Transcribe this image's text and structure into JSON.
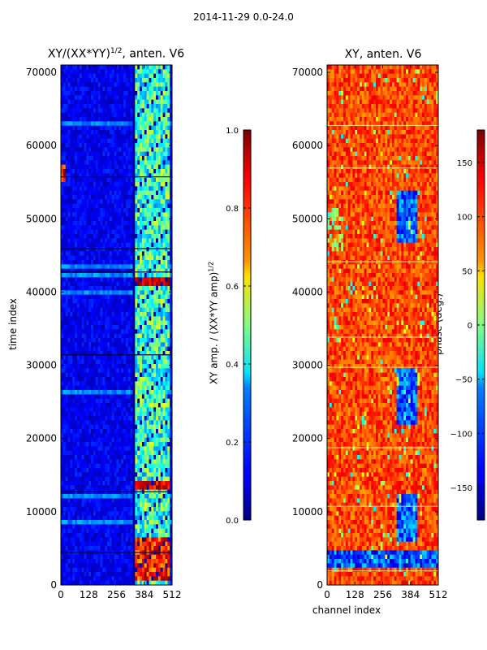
{
  "figure": {
    "suptitle": "2014-11-29 0.0-24.0"
  },
  "chart_data": [
    {
      "type": "heatmap",
      "title": "XY/(XX*YY)^1/2, anten. V6",
      "title_main": "XY/(XX*YY)",
      "title_sup": "1/2",
      "title_tail": ", anten. V6",
      "xlabel": "",
      "ylabel": "time index",
      "xlim": [
        0,
        512
      ],
      "ylim": [
        0,
        71000
      ],
      "xticks": [
        0,
        128,
        256,
        384,
        512
      ],
      "yticks": [
        0,
        10000,
        20000,
        30000,
        40000,
        50000,
        60000,
        70000
      ],
      "colorbar": {
        "label": "XY amp. / (XX*YY amp)^1/2",
        "label_main": "XY amp. / (XX*YY amp)",
        "label_sup": "1/2",
        "range": [
          0.0,
          1.0
        ],
        "ticks": [
          "0.0",
          "0.2",
          "0.4",
          "0.6",
          "0.8",
          "1.0"
        ],
        "colormap": "jet"
      }
    },
    {
      "type": "heatmap",
      "title": "XY, anten. V6",
      "xlabel": "channel index",
      "ylabel": "",
      "xlim": [
        0,
        512
      ],
      "ylim": [
        0,
        71000
      ],
      "xticks": [
        0,
        128,
        256,
        384,
        512
      ],
      "yticks": [
        0,
        10000,
        20000,
        30000,
        40000,
        50000,
        60000,
        70000
      ],
      "colorbar": {
        "label": "phase (deg.)",
        "range": [
          -180,
          180
        ],
        "ticks": [
          "150",
          "100",
          "50",
          "0",
          "−50",
          "−100",
          "−150"
        ],
        "colormap": "jet"
      }
    }
  ],
  "colors": {
    "jet_dark_blue": "#00007f",
    "jet_blue": "#0000ff",
    "jet_cyan": "#00ffff",
    "jet_yellow": "#ffff00",
    "jet_red": "#ff0000",
    "jet_dark_red": "#7f0000"
  }
}
